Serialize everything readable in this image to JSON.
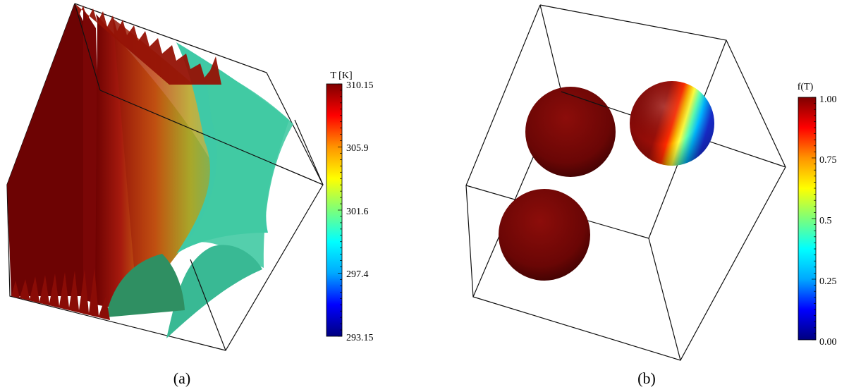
{
  "panels": [
    {
      "caption": "(a)",
      "colorbar": {
        "title": "T [K]",
        "ticks": [
          "310.15",
          "305.9",
          "301.6",
          "297.4",
          "293.15"
        ],
        "colormap": [
          "#00007f",
          "#0000ff",
          "#00a8ff",
          "#00ffff",
          "#7cff7a",
          "#ffff00",
          "#ff9400",
          "#ff0000",
          "#7f0000"
        ]
      }
    },
    {
      "caption": "(b)",
      "colorbar": {
        "title": "f(T)",
        "ticks": [
          "1.00",
          "0.75",
          "0.5",
          "0.25",
          "0.00"
        ],
        "colormap": [
          "#00007f",
          "#0000ff",
          "#00a8ff",
          "#00ffff",
          "#7cff7a",
          "#ffff00",
          "#ff9400",
          "#ff0000",
          "#7f0000"
        ]
      }
    }
  ]
}
